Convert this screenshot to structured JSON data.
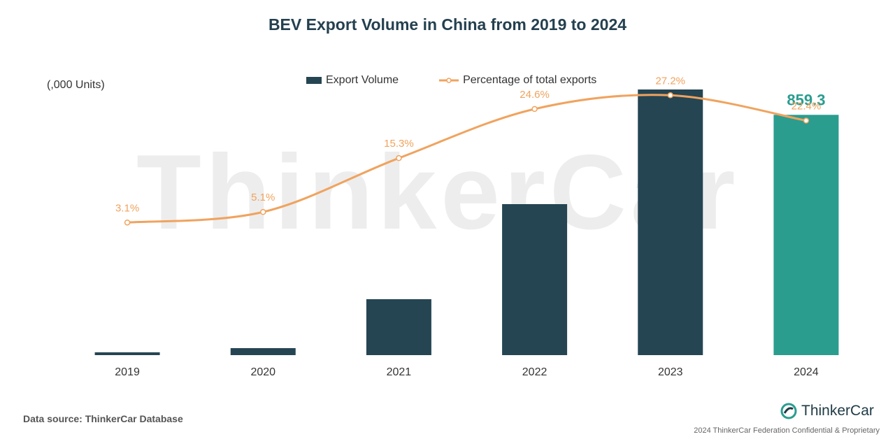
{
  "title": "BEV Export Volume in China from 2019 to 2024",
  "unit_label": "(,000 Units)",
  "watermark": "ThinkerCar",
  "source": "Data source: ThinkerCar Database",
  "brand": {
    "name": "ThinkerCar",
    "icon": "thinkercar-logo-icon"
  },
  "footer": "2024 ThinkerCar Federation Confidential & Proprietary",
  "colors": {
    "bar": "#254553",
    "highlight": "#2a9d8f",
    "line": "#f0a35e",
    "title": "#24404f"
  },
  "legend": {
    "bar_label": "Export Volume",
    "line_label": "Percentage of total exports"
  },
  "chart_data": {
    "type": "bar",
    "categories": [
      "2019",
      "2020",
      "2021",
      "2022",
      "2023",
      "2024"
    ],
    "series": [
      {
        "name": "Export Volume",
        "type": "bar",
        "values": [
          10,
          25,
          200,
          540,
          950,
          859.3
        ],
        "highlight_index": 5,
        "data_labels": [
          "",
          "",
          "",
          "",
          "",
          "859.3"
        ]
      },
      {
        "name": "Percentage of total exports",
        "type": "line",
        "values": [
          3.1,
          5.1,
          15.3,
          24.6,
          27.2,
          22.4
        ],
        "data_labels": [
          "3.1%",
          "5.1%",
          "15.3%",
          "24.6%",
          "27.2%",
          "22.4%"
        ]
      }
    ],
    "ylim": [
      0,
      1020
    ],
    "y2lim": [
      -22,
      32
    ],
    "ylabel": "(,000 Units)",
    "grid": false,
    "legend_position": "top-center"
  }
}
